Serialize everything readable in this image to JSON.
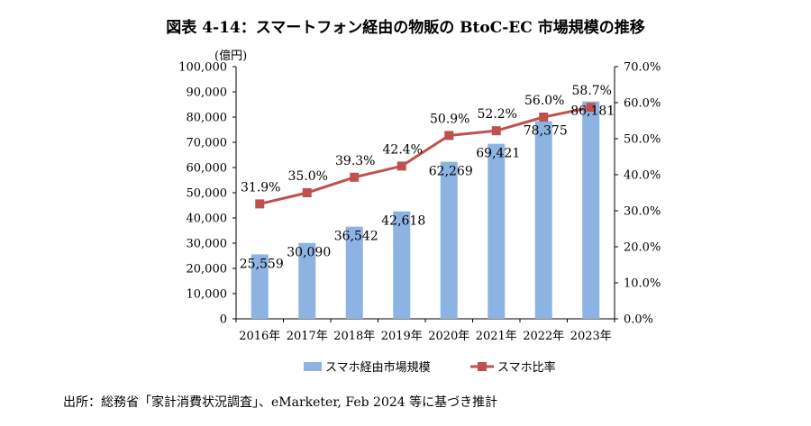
{
  "title": "図表 4-14：スマートフォン経由の物販の BtoC-EC 市場規模の推移",
  "source": "出所：総務省「家計消費状況調査」、eMarketer, Feb 2024 等に基づき推計",
  "colors": {
    "bar": "#8db3e2",
    "line": "#c0504d"
  },
  "chart_data": {
    "type": "bar",
    "categories": [
      "2016年",
      "2017年",
      "2018年",
      "2019年",
      "2020年",
      "2021年",
      "2022年",
      "2023年"
    ],
    "series": [
      {
        "name": "スマホ経由市場規模",
        "type": "bar",
        "axis": "left",
        "values": [
          25559,
          30090,
          36542,
          42618,
          62269,
          69421,
          78375,
          86181
        ],
        "labels": [
          "25,559",
          "30,090",
          "36,542",
          "42,618",
          "62,269",
          "69,421",
          "78,375",
          "86,181"
        ]
      },
      {
        "name": "スマホ比率",
        "type": "line",
        "axis": "right",
        "values": [
          31.9,
          35.0,
          39.3,
          42.4,
          50.9,
          52.2,
          56.0,
          58.7
        ],
        "labels": [
          "31.9%",
          "35.0%",
          "39.3%",
          "42.4%",
          "50.9%",
          "52.2%",
          "56.0%",
          "58.7%"
        ]
      }
    ],
    "ylabel": "(億円)",
    "ylim": [
      0,
      100000
    ],
    "y_ticks": [
      "0",
      "10,000",
      "20,000",
      "30,000",
      "40,000",
      "50,000",
      "60,000",
      "70,000",
      "80,000",
      "90,000",
      "100,000"
    ],
    "y2lim": [
      0,
      70
    ],
    "y2_ticks": [
      "0.0%",
      "10.0%",
      "20.0%",
      "30.0%",
      "40.0%",
      "50.0%",
      "60.0%",
      "70.0%"
    ],
    "legend_position": "bottom",
    "grid": false
  }
}
